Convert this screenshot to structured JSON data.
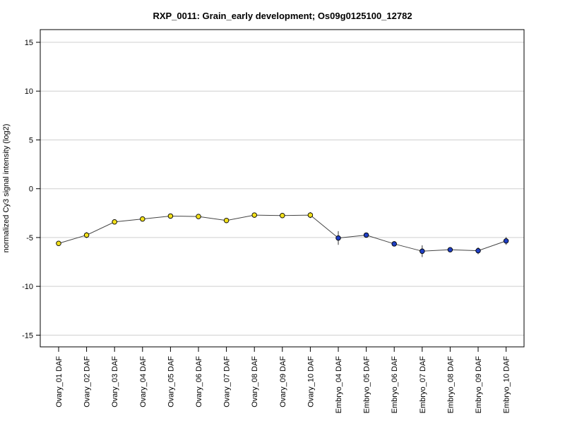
{
  "chart_data": {
    "type": "line",
    "title": "RXP_0011: Grain_early development; Os09g0125100_12782",
    "ylabel": "normalized Cy3 signal intensity (log2)",
    "xlabel": "",
    "ylim": [
      -16.2,
      16.3
    ],
    "yticks": [
      -15,
      -10,
      -5,
      0,
      5,
      10,
      15
    ],
    "grid": true,
    "categories": [
      "Ovary_01 DAF",
      "Ovary_02 DAF",
      "Ovary_03 DAF",
      "Ovary_04 DAF",
      "Ovary_05 DAF",
      "Ovary_06 DAF",
      "Ovary_07 DAF",
      "Ovary_08 DAF",
      "Ovary_09 DAF",
      "Ovary_10 DAF",
      "Embryo_04 DAF",
      "Embryo_05 DAF",
      "Embryo_06 DAF",
      "Embryo_07 DAF",
      "Embryo_08 DAF",
      "Embryo_09 DAF",
      "Embryo_10 DAF"
    ],
    "values": [
      -5.6,
      -4.75,
      -3.4,
      -3.1,
      -2.8,
      -2.85,
      -3.25,
      -2.7,
      -2.75,
      -2.7,
      -5.05,
      -4.75,
      -5.65,
      -6.4,
      -6.25,
      -6.35,
      -5.35
    ],
    "errors": [
      0.15,
      0.3,
      0.15,
      0.2,
      0.2,
      0.15,
      0.25,
      0.2,
      0.15,
      0.3,
      0.7,
      0.2,
      0.15,
      0.6,
      0.2,
      0.35,
      0.4
    ],
    "point_colors": [
      "#f2e01c",
      "#f2e01c",
      "#f2e01c",
      "#f2e01c",
      "#f2e01c",
      "#f2e01c",
      "#f2e01c",
      "#f2e01c",
      "#f2e01c",
      "#f2e01c",
      "#1f3fc4",
      "#1f3fc4",
      "#1f3fc4",
      "#1f3fc4",
      "#1f3fc4",
      "#1f3fc4",
      "#1f3fc4"
    ]
  }
}
